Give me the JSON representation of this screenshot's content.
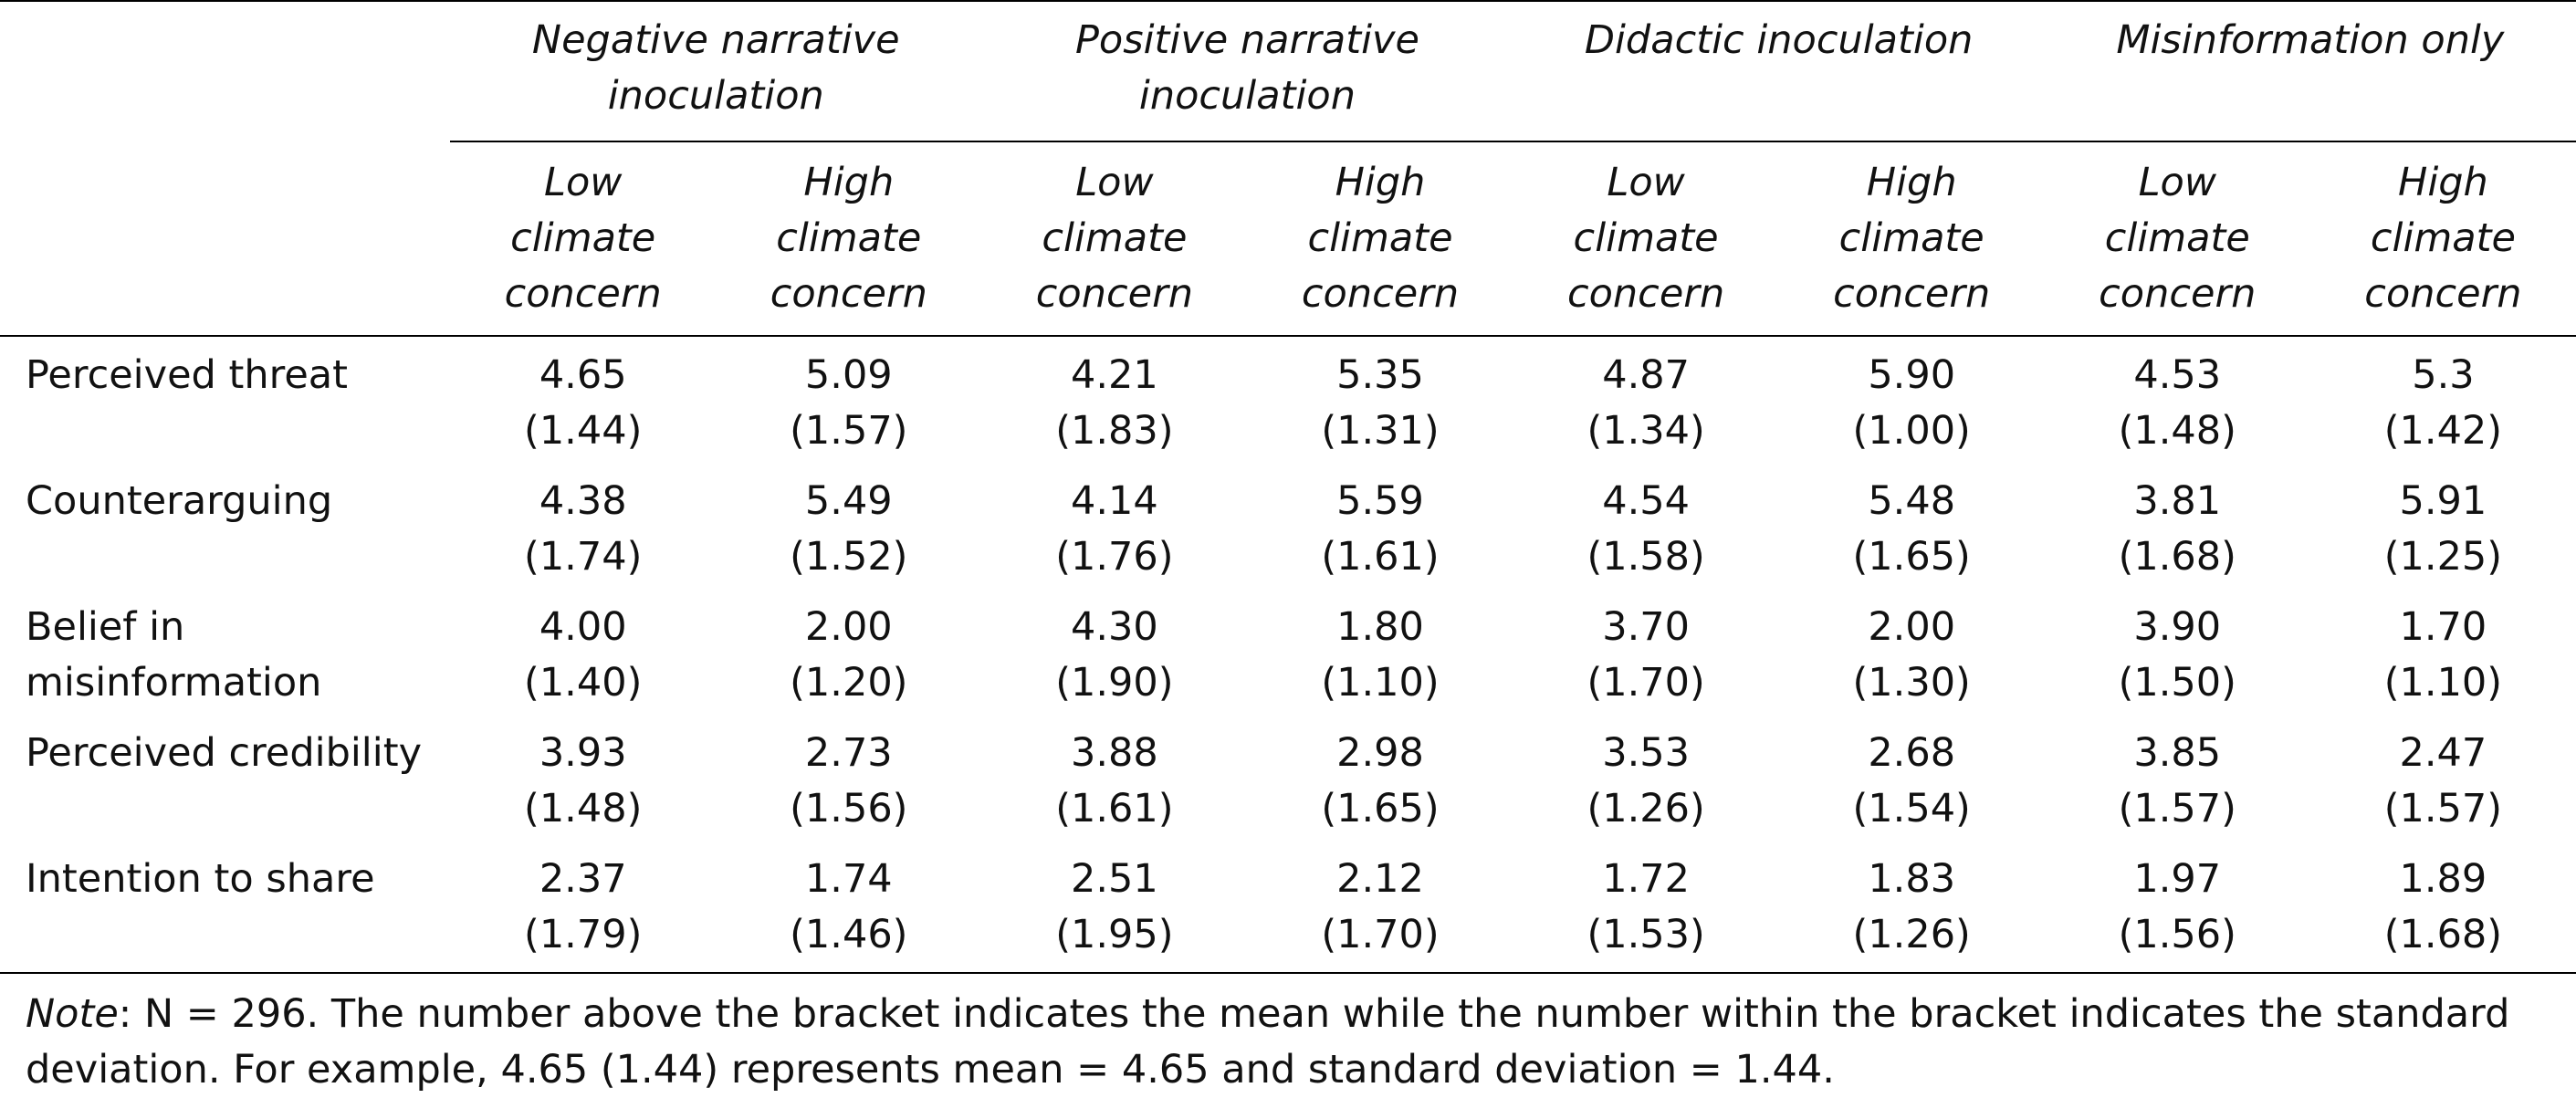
{
  "table": {
    "groups": [
      {
        "lines": [
          "Negative narrative",
          "inoculation"
        ]
      },
      {
        "lines": [
          "Positive narrative",
          "inoculation"
        ]
      },
      {
        "lines": [
          "Didactic inoculation"
        ]
      },
      {
        "lines": [
          "Misinformation only"
        ]
      }
    ],
    "subheaders": {
      "low": [
        "Low",
        "climate",
        "concern"
      ],
      "high": [
        "High",
        "climate",
        "concern"
      ]
    },
    "rows": [
      {
        "label": [
          "Perceived threat"
        ],
        "cells": [
          [
            "4.65",
            "(1.44)"
          ],
          [
            "5.09",
            "(1.57)"
          ],
          [
            "4.21",
            "(1.83)"
          ],
          [
            "5.35",
            "(1.31)"
          ],
          [
            "4.87",
            "(1.34)"
          ],
          [
            "5.90",
            "(1.00)"
          ],
          [
            "4.53",
            "(1.48)"
          ],
          [
            "5.3",
            "(1.42)"
          ]
        ]
      },
      {
        "label": [
          "Counterarguing"
        ],
        "cells": [
          [
            "4.38",
            "(1.74)"
          ],
          [
            "5.49",
            "(1.52)"
          ],
          [
            "4.14",
            "(1.76)"
          ],
          [
            "5.59",
            "(1.61)"
          ],
          [
            "4.54",
            "(1.58)"
          ],
          [
            "5.48",
            "(1.65)"
          ],
          [
            "3.81",
            "(1.68)"
          ],
          [
            "5.91",
            "(1.25)"
          ]
        ]
      },
      {
        "label": [
          "Belief in",
          "misinformation"
        ],
        "cells": [
          [
            "4.00",
            "(1.40)"
          ],
          [
            "2.00",
            "(1.20)"
          ],
          [
            "4.30",
            "(1.90)"
          ],
          [
            "1.80",
            "(1.10)"
          ],
          [
            "3.70",
            "(1.70)"
          ],
          [
            "2.00",
            "(1.30)"
          ],
          [
            "3.90",
            "(1.50)"
          ],
          [
            "1.70",
            "(1.10)"
          ]
        ]
      },
      {
        "label": [
          "Perceived credibility"
        ],
        "cells": [
          [
            "3.93",
            "(1.48)"
          ],
          [
            "2.73",
            "(1.56)"
          ],
          [
            "3.88",
            "(1.61)"
          ],
          [
            "2.98",
            "(1.65)"
          ],
          [
            "3.53",
            "(1.26)"
          ],
          [
            "2.68",
            "(1.54)"
          ],
          [
            "3.85",
            "(1.57)"
          ],
          [
            "2.47",
            "(1.57)"
          ]
        ]
      },
      {
        "label": [
          "Intention to share"
        ],
        "cells": [
          [
            "2.37",
            "(1.79)"
          ],
          [
            "1.74",
            "(1.46)"
          ],
          [
            "2.51",
            "(1.95)"
          ],
          [
            "2.12",
            "(1.70)"
          ],
          [
            "1.72",
            "(1.53)"
          ],
          [
            "1.83",
            "(1.26)"
          ],
          [
            "1.97",
            "(1.56)"
          ],
          [
            "1.89",
            "(1.68)"
          ]
        ]
      }
    ]
  },
  "note": {
    "lead": "Note",
    "text": ": N = 296. The number above the bracket indicates the mean while the number within the bracket indicates the standard deviation. For example, 4.65 (1.44) represents mean = 4.65 and standard deviation = 1.44."
  }
}
